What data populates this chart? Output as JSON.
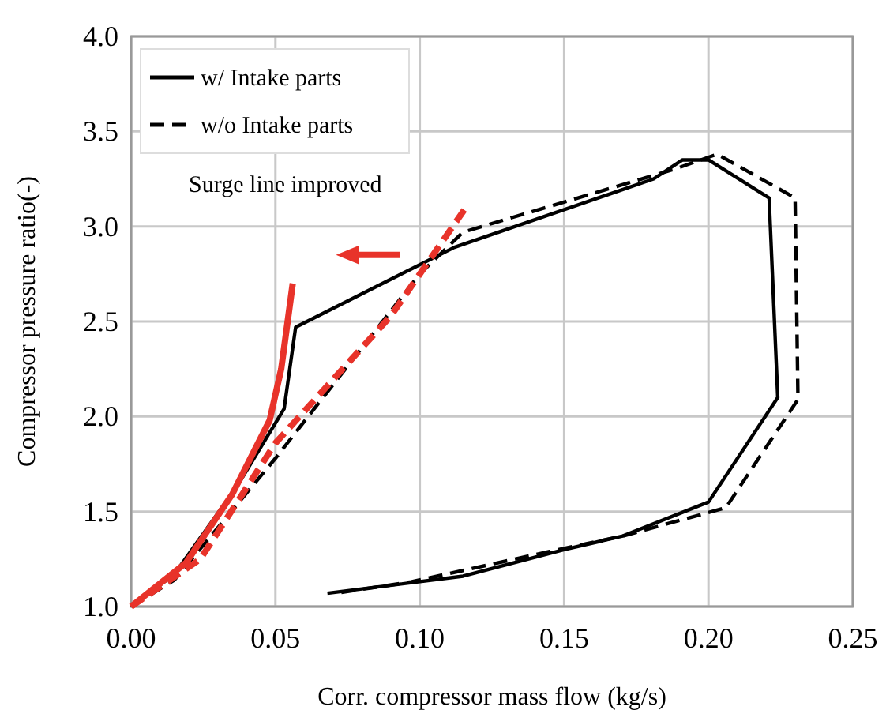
{
  "chart_data": {
    "type": "line",
    "xlabel": "Corr. compressor mass flow (kg/s)",
    "ylabel": "Compressor pressure ratio(-)",
    "xlim": [
      0,
      0.25
    ],
    "ylim": [
      1,
      4
    ],
    "xticks": [
      {
        "value": 0,
        "label": "0.00"
      },
      {
        "value": 0.05,
        "label": "0.05"
      },
      {
        "value": 0.1,
        "label": "0.10"
      },
      {
        "value": 0.15,
        "label": "0.15"
      },
      {
        "value": 0.2,
        "label": "0.20"
      },
      {
        "value": 0.25,
        "label": "0.25"
      }
    ],
    "yticks": [
      {
        "value": 1,
        "label": "1.0"
      },
      {
        "value": 1.5,
        "label": "1.5"
      },
      {
        "value": 2,
        "label": "2.0"
      },
      {
        "value": 2.5,
        "label": "2.5"
      },
      {
        "value": 3,
        "label": "3.0"
      },
      {
        "value": 3.5,
        "label": "3.5"
      },
      {
        "value": 4,
        "label": "4.0"
      }
    ],
    "grid": true,
    "legend": "top left",
    "annotations": [
      "Surge line improved"
    ],
    "series": [
      {
        "name": "w/ Intake parts",
        "color": "#000000",
        "line_style": "solid",
        "x": [
          0,
          0.015,
          0.037,
          0.053,
          0.057,
          0.112,
          0.181,
          0.191,
          0.2,
          0.221,
          0.224,
          0.2,
          0.17,
          0.15,
          0.115,
          0.068
        ],
        "values": [
          1,
          1.17,
          1.64,
          2.04,
          2.47,
          2.89,
          3.25,
          3.35,
          3.35,
          3.15,
          2.1,
          1.55,
          1.37,
          1.3,
          1.16,
          1.07
        ]
      },
      {
        "name": "w/o Intake parts",
        "color": "#000000",
        "line_style": "dashed",
        "x": [
          0,
          0.015,
          0.05,
          0.1,
          0.115,
          0.188,
          0.203,
          0.23,
          0.231,
          0.206,
          0.17,
          0.148,
          0.097,
          0.071
        ],
        "values": [
          1,
          1.14,
          1.78,
          2.75,
          2.97,
          3.3,
          3.38,
          3.15,
          2.09,
          1.52,
          1.37,
          1.3,
          1.13,
          1.07
        ]
      },
      {
        "color": "#e8332a",
        "line_style": "solid",
        "x": [
          0,
          0.019,
          0.035,
          0.048,
          0.052,
          0.056
        ],
        "values": [
          1,
          1.23,
          1.59,
          1.98,
          2.25,
          2.7
        ]
      },
      {
        "color": "#e8332a",
        "line_style": "dashed",
        "x": [
          0,
          0.024,
          0.05,
          0.09,
          0.116
        ],
        "values": [
          1,
          1.25,
          1.86,
          2.53,
          3.1
        ]
      }
    ]
  }
}
